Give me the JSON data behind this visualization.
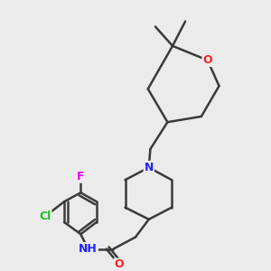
{
  "background_color": "#ebebeb",
  "bond_color": "#3a3a3a",
  "bond_lw": 1.8,
  "atom_colors": {
    "N": "#2020ff",
    "O": "#ff2020",
    "Cl": "#22bb22",
    "F": "#ee00ee",
    "H": "#3a3a3a",
    "C": "#3a3a3a"
  },
  "figsize": [
    3.0,
    3.0
  ],
  "dpi": 100,
  "xlim": [
    0,
    300
  ],
  "ylim": [
    0,
    300
  ]
}
